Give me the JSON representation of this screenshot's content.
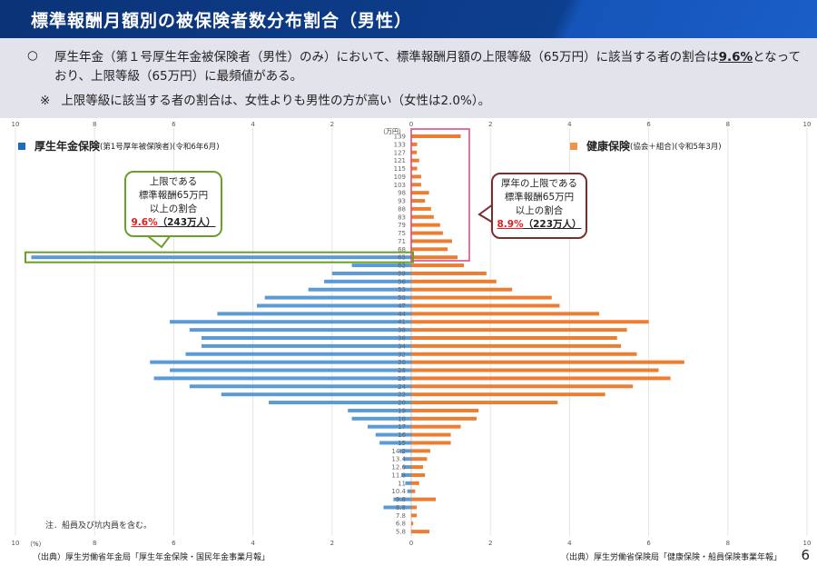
{
  "header": {
    "title": "標準報酬月額別の被保険者数分布割合（男性）"
  },
  "summary": {
    "bullet_icon": "○",
    "line1_pre": "厚生年金（第１号厚生年金被保険者（男性）のみ）において、標準報酬月額の上限等級（65万円）に該当する者の割合は",
    "line1_highlight": "9.6%",
    "line1_post": "となっており、上限等級（65万円）に最頻値がある。",
    "note_mark": "※",
    "note_text": "上限等級に該当する者の割合は、女性よりも男性の方が高い（女性は2.0%）。"
  },
  "legend": {
    "left_main": "厚生年金保険",
    "left_sub": "(第1号厚年被保険者)(令和6年6月)",
    "right_main": "健康保険",
    "right_sub": "(協会＋組合)(令和5年3月)"
  },
  "callouts": {
    "left": {
      "l1": "上限である",
      "l2": "標準報酬65万円",
      "l3": "以上の割合",
      "pct": "9.6%",
      "count": "（243万人）"
    },
    "right": {
      "l1": "厚年の上限である",
      "l2": "標準報酬65万円",
      "l3": "以上の割合",
      "pct": "8.9%",
      "count": "（223万人）"
    }
  },
  "footer": {
    "note": "注．船員及び坑内員を含む。",
    "source_left": "（出典）厚生労働省年金局「厚生年金保険・国民年金事業月報」",
    "source_right": "（出典）厚生労働省保険局「健康保険・船員保険事業年報」",
    "page_number": "6"
  },
  "colors": {
    "pension": "#5b9bd5",
    "health": "#ed7d31",
    "pink_box": "#d9467a",
    "green_box": "#6aa02a",
    "dark_red": "#7b2d2d"
  },
  "chart_data": {
    "type": "bar",
    "orientation": "horizontal-pyramid",
    "ylabel_unit": "（万円）",
    "xlabel_unit": "（%）",
    "xlim": [
      0,
      10
    ],
    "x_ticks": [
      "10",
      "8",
      "6",
      "4",
      "2",
      "0",
      "2",
      "4",
      "6",
      "8",
      "10"
    ],
    "categories": [
      "139",
      "133",
      "127",
      "121",
      "115",
      "109",
      "103",
      "98",
      "93",
      "88",
      "83",
      "79",
      "75",
      "71",
      "68",
      "65",
      "62",
      "59",
      "56",
      "53",
      "50",
      "47",
      "44",
      "41",
      "38",
      "36",
      "34",
      "32",
      "30",
      "28",
      "26",
      "24",
      "22",
      "20",
      "19",
      "18",
      "17",
      "16",
      "15",
      "14.2",
      "13.4",
      "12.6",
      "11.8",
      "11",
      "10.4",
      "9.8",
      "8.8",
      "7.8",
      "6.8",
      "5.8"
    ],
    "series": [
      {
        "name": "厚生年金保険",
        "side": "left",
        "values": [
          null,
          null,
          null,
          null,
          null,
          null,
          null,
          null,
          null,
          null,
          null,
          null,
          null,
          null,
          null,
          9.6,
          1.5,
          2.0,
          2.2,
          2.6,
          3.7,
          3.9,
          4.9,
          6.1,
          5.6,
          5.3,
          5.3,
          5.7,
          6.6,
          6.1,
          6.5,
          5.6,
          4.8,
          3.6,
          1.6,
          1.5,
          1.1,
          0.9,
          0.8,
          0.3,
          0.2,
          0.2,
          0.25,
          0.15,
          0.1,
          0.45,
          0.7,
          null,
          null,
          null
        ]
      },
      {
        "name": "健康保険",
        "side": "right",
        "values": [
          1.25,
          0.15,
          0.14,
          0.2,
          0.15,
          0.25,
          0.25,
          0.45,
          0.35,
          0.5,
          0.57,
          0.73,
          0.8,
          1.03,
          0.92,
          1.17,
          1.33,
          1.9,
          2.15,
          2.55,
          3.55,
          3.75,
          4.75,
          6.0,
          5.45,
          5.2,
          5.3,
          5.7,
          6.9,
          6.25,
          6.55,
          5.6,
          4.9,
          3.7,
          1.7,
          1.65,
          1.25,
          1.0,
          1.0,
          0.48,
          0.4,
          0.3,
          0.35,
          0.2,
          0.1,
          0.62,
          0.14,
          0.14,
          0.05,
          0.46
        ]
      }
    ],
    "grid": true
  }
}
